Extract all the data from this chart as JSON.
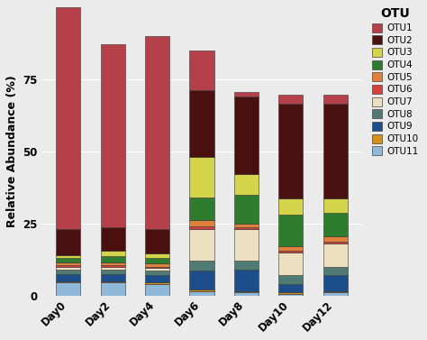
{
  "categories": [
    "Day0",
    "Day2",
    "Day4",
    "Day6",
    "Day8",
    "Day10",
    "Day12"
  ],
  "otus": [
    "OTU11",
    "OTU10",
    "OTU9",
    "OTU8",
    "OTU7",
    "OTU6",
    "OTU5",
    "OTU4",
    "OTU3",
    "OTU2",
    "OTU1"
  ],
  "colors": {
    "OTU1": "#B5404A",
    "OTU2": "#4A1010",
    "OTU3": "#D4D44A",
    "OTU4": "#2E7D2E",
    "OTU5": "#E0803A",
    "OTU6": "#D44040",
    "OTU7": "#EDE0C0",
    "OTU8": "#507A74",
    "OTU9": "#1C4E8C",
    "OTU10": "#D4901A",
    "OTU11": "#90B8D8"
  },
  "values": {
    "OTU11": [
      4.5,
      4.5,
      4.0,
      1.5,
      1.0,
      0.5,
      1.0
    ],
    "OTU10": [
      0.5,
      0.5,
      0.5,
      0.5,
      0.5,
      0.5,
      0.5
    ],
    "OTU9": [
      2.5,
      2.5,
      2.5,
      6.5,
      7.5,
      3.0,
      5.5
    ],
    "OTU8": [
      1.5,
      1.5,
      1.5,
      3.5,
      3.0,
      3.0,
      3.0
    ],
    "OTU7": [
      1.0,
      1.0,
      1.0,
      11.0,
      11.0,
      8.0,
      8.0
    ],
    "OTU6": [
      0.5,
      0.5,
      0.5,
      1.0,
      0.5,
      0.5,
      0.5
    ],
    "OTU5": [
      1.0,
      1.0,
      1.0,
      2.0,
      1.5,
      1.5,
      2.0
    ],
    "OTU4": [
      1.5,
      2.0,
      2.0,
      8.0,
      10.0,
      11.0,
      8.0
    ],
    "OTU3": [
      1.0,
      2.0,
      1.5,
      14.0,
      7.0,
      5.5,
      5.0
    ],
    "OTU2": [
      9.0,
      8.0,
      8.5,
      23.0,
      27.0,
      33.0,
      33.0
    ],
    "OTU1": [
      77.0,
      63.5,
      67.0,
      14.0,
      1.5,
      3.0,
      3.0
    ]
  },
  "ylabel": "Relative Abundance (%)",
  "ylim": [
    0,
    100
  ],
  "yticks": [
    0,
    25,
    50,
    75
  ],
  "legend_title": "OTU",
  "legend_order": [
    "OTU1",
    "OTU2",
    "OTU3",
    "OTU4",
    "OTU5",
    "OTU6",
    "OTU7",
    "OTU8",
    "OTU9",
    "OTU10",
    "OTU11"
  ],
  "bg_color": "#EBEBEB",
  "grid_color": "#FFFFFF"
}
